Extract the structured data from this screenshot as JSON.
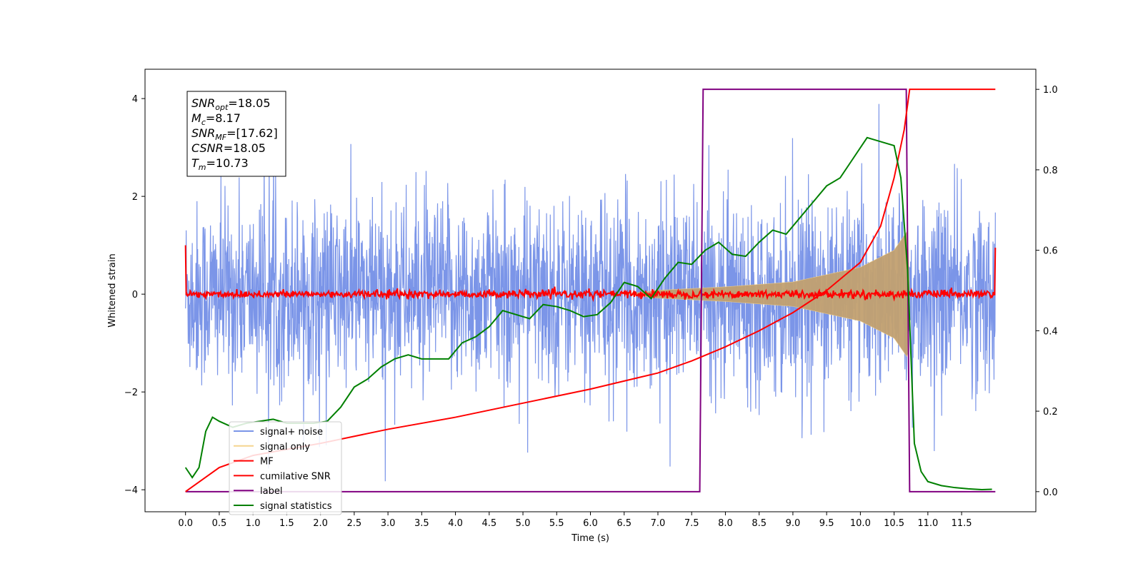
{
  "chart_data": {
    "type": "line",
    "xlabel": "Time (s)",
    "ylabel": "Whitened strain",
    "xlim": [
      -0.6,
      12.6
    ],
    "ylim": [
      -4.45,
      4.6
    ],
    "ylim_right": [
      -0.05,
      1.05
    ],
    "x_ticks": [
      "0.0",
      "0.5",
      "1.0",
      "1.5",
      "2.0",
      "2.5",
      "3.0",
      "3.5",
      "4.0",
      "4.5",
      "5.0",
      "5.5",
      "6.0",
      "6.5",
      "7.0",
      "7.5",
      "8.0",
      "8.5",
      "9.0",
      "9.5",
      "10.0",
      "10.5",
      "11.0",
      "11.5"
    ],
    "y_ticks_left": [
      "−4",
      "−2",
      "0",
      "2",
      "4"
    ],
    "y_ticks_right": [
      "0.0",
      "0.2",
      "0.4",
      "0.6",
      "0.8",
      "1.0"
    ],
    "legend_location": "lower-left",
    "legend": [
      {
        "label": "signal+ noise",
        "color": "#7b95e8"
      },
      {
        "label": "signal only",
        "color": "#f5d58f"
      },
      {
        "label": "MF",
        "color": "#ff0000"
      },
      {
        "label": "cumilative SNR",
        "color": "#ff0000"
      },
      {
        "label": "label",
        "color": "#800080"
      },
      {
        "label": "signal statistics",
        "color": "#008000"
      }
    ],
    "annotation": [
      {
        "sym": "SNR",
        "sub": "opt",
        "value": "=18.05"
      },
      {
        "sym": "M",
        "sub": "c",
        "value": "=8.17"
      },
      {
        "sym": "SNR",
        "sub": "MF",
        "value": "=[17.62]"
      },
      {
        "sym": "CSNR",
        "sub": "",
        "value": "=18.05"
      },
      {
        "sym": "T",
        "sub": "m",
        "value": "=10.73"
      }
    ],
    "series": [
      {
        "name": "signal+ noise",
        "axis": "left",
        "description_kind": "noise band",
        "x_range": [
          0.0,
          12.0
        ],
        "typical_range": [
          -1.5,
          1.5
        ],
        "spike_max": 4.05,
        "spike_min": -4.0
      },
      {
        "name": "signal only",
        "axis": "left",
        "description_kind": "chirp envelope",
        "x_range": [
          6.5,
          10.73
        ],
        "amplitude_at": [
          [
            7.0,
            0.08
          ],
          [
            8.0,
            0.15
          ],
          [
            9.0,
            0.25
          ],
          [
            10.0,
            0.55
          ],
          [
            10.5,
            0.9
          ],
          [
            10.7,
            1.3
          ],
          [
            10.73,
            0.0
          ]
        ]
      },
      {
        "name": "MF",
        "axis": "left",
        "x_range": [
          0.0,
          12.0
        ],
        "typical_range": [
          -0.08,
          0.08
        ],
        "edge_values": [
          1.0,
          0.95
        ]
      },
      {
        "name": "cumilative SNR",
        "axis": "right",
        "x": [
          0.0,
          0.5,
          1.0,
          2.0,
          3.0,
          4.0,
          5.0,
          6.0,
          7.0,
          7.5,
          8.0,
          8.5,
          9.0,
          9.5,
          10.0,
          10.3,
          10.5,
          10.65,
          10.73,
          12.0
        ],
        "y": [
          0.0,
          0.06,
          0.09,
          0.12,
          0.155,
          0.185,
          0.22,
          0.255,
          0.295,
          0.325,
          0.36,
          0.4,
          0.445,
          0.5,
          0.57,
          0.66,
          0.78,
          0.9,
          1.0,
          1.0
        ]
      },
      {
        "name": "label",
        "axis": "right",
        "x": [
          0.0,
          7.62,
          7.67,
          10.68,
          10.73,
          12.0
        ],
        "y": [
          0.0,
          0.0,
          1.0,
          1.0,
          0.0,
          0.0
        ]
      },
      {
        "name": "signal statistics",
        "axis": "right",
        "x": [
          0.0,
          0.1,
          0.2,
          0.3,
          0.4,
          0.5,
          0.7,
          0.9,
          1.1,
          1.3,
          1.5,
          1.7,
          1.9,
          2.1,
          2.3,
          2.5,
          2.7,
          2.9,
          3.1,
          3.3,
          3.5,
          3.7,
          3.9,
          4.1,
          4.3,
          4.5,
          4.7,
          4.9,
          5.1,
          5.3,
          5.5,
          5.7,
          5.9,
          6.1,
          6.3,
          6.5,
          6.7,
          6.9,
          7.1,
          7.3,
          7.5,
          7.7,
          7.9,
          8.1,
          8.3,
          8.5,
          8.7,
          8.9,
          9.1,
          9.3,
          9.5,
          9.7,
          9.9,
          10.1,
          10.3,
          10.5,
          10.6,
          10.7,
          10.8,
          10.9,
          11.0,
          11.2,
          11.4,
          11.6,
          11.8,
          11.95
        ],
        "y": [
          0.06,
          0.035,
          0.06,
          0.15,
          0.185,
          0.175,
          0.16,
          0.17,
          0.175,
          0.18,
          0.17,
          0.17,
          0.17,
          0.175,
          0.21,
          0.26,
          0.28,
          0.31,
          0.33,
          0.34,
          0.33,
          0.33,
          0.33,
          0.37,
          0.385,
          0.41,
          0.45,
          0.44,
          0.43,
          0.465,
          0.46,
          0.45,
          0.435,
          0.44,
          0.47,
          0.52,
          0.51,
          0.48,
          0.53,
          0.57,
          0.565,
          0.6,
          0.62,
          0.59,
          0.585,
          0.62,
          0.65,
          0.64,
          0.68,
          0.72,
          0.76,
          0.78,
          0.83,
          0.88,
          0.87,
          0.86,
          0.78,
          0.55,
          0.12,
          0.05,
          0.025,
          0.015,
          0.01,
          0.007,
          0.005,
          0.006
        ]
      }
    ]
  }
}
